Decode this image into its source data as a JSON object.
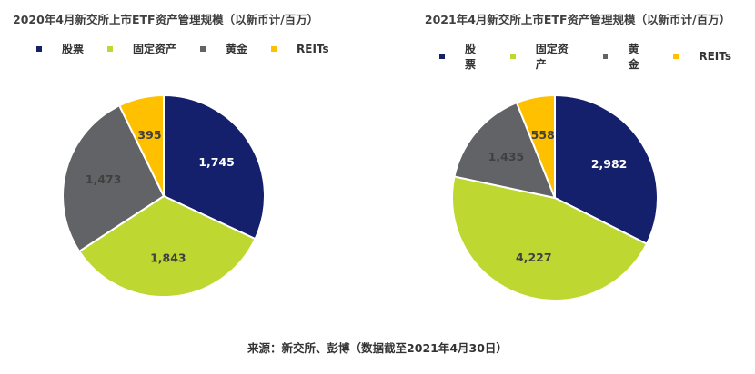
{
  "colors": {
    "stocks": "#14206B",
    "fixed_income": "#BFD731",
    "gold": "#626366",
    "reits": "#FFC000",
    "slice_border": "#ffffff"
  },
  "chart_data": [
    {
      "type": "pie",
      "title": "2020年4月新交所上市ETF资产管理规模（以新币计/百万）",
      "legend_position": "top",
      "categories": [
        "股票",
        "固定资产",
        "黄金",
        "REITs"
      ],
      "values": [
        1745,
        1843,
        1473,
        395
      ],
      "value_labels": [
        "1,745",
        "1,843",
        "1,473",
        "395"
      ],
      "colors": [
        "#14206B",
        "#BFD731",
        "#626366",
        "#FFC000"
      ]
    },
    {
      "type": "pie",
      "title": "2021年4月新交所上市ETF资产管理规模（以新币计/百万）",
      "legend_position": "top",
      "categories": [
        "股票",
        "固定资产",
        "黄金",
        "REITs"
      ],
      "values": [
        2982,
        4227,
        1435,
        558
      ],
      "value_labels": [
        "2,982",
        "4,227",
        "1,435",
        "558"
      ],
      "colors": [
        "#14206B",
        "#BFD731",
        "#626366",
        "#FFC000"
      ]
    }
  ],
  "source": "来源：新交所、彭博（数据截至2021年4月30日）"
}
